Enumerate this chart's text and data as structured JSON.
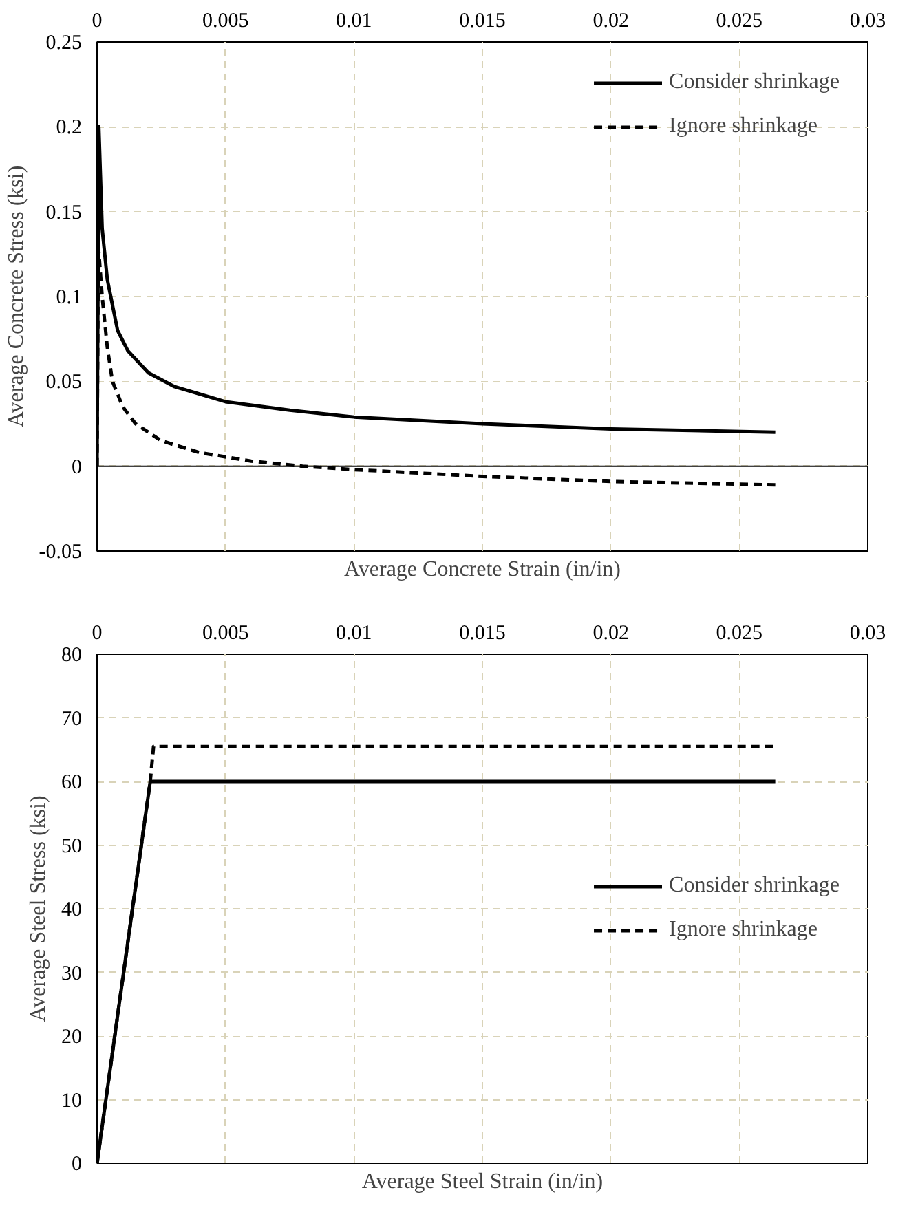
{
  "chart_data": [
    {
      "type": "line",
      "xlabel": "Average Concrete Strain (in/in)",
      "ylabel": "Average Concrete Stress (ksi)",
      "xlim": [
        0,
        0.03
      ],
      "xticks": [
        0,
        0.005,
        0.01,
        0.015,
        0.02,
        0.025,
        0.03
      ],
      "ylim": [
        -0.05,
        0.25
      ],
      "yticks": [
        -0.05,
        0,
        0.05,
        0.1,
        0.15,
        0.2,
        0.25
      ],
      "grid": true,
      "legend": "top right",
      "marker": "none",
      "ref_lines": [
        {
          "axis": "y",
          "value": 0,
          "color": "#000000",
          "line_style": "solid"
        }
      ],
      "series": [
        {
          "name": "Consider shrinkage",
          "color": "#000000",
          "line_style": "solid",
          "x": [
            0,
            7e-05,
            0.0002,
            0.0004,
            0.0008,
            0.0012,
            0.002,
            0.003,
            0.005,
            0.0075,
            0.01,
            0.015,
            0.02,
            0.0264
          ],
          "values": [
            0,
            0.2,
            0.14,
            0.11,
            0.08,
            0.068,
            0.055,
            0.047,
            0.038,
            0.033,
            0.029,
            0.025,
            0.022,
            0.02
          ]
        },
        {
          "name": "Ignore shrinkage",
          "color": "#000000",
          "line_style": "dashed",
          "x": [
            0,
            5e-05,
            0.0002,
            0.0004,
            0.0006,
            0.001,
            0.0015,
            0.0025,
            0.004,
            0.006,
            0.008,
            0.01,
            0.015,
            0.02,
            0.0264
          ],
          "values": [
            0,
            0.13,
            0.1,
            0.07,
            0.05,
            0.035,
            0.025,
            0.015,
            0.008,
            0.003,
            0.0,
            -0.002,
            -0.006,
            -0.009,
            -0.011
          ]
        }
      ]
    },
    {
      "type": "line",
      "xlabel": "Average Steel Strain (in/in)",
      "ylabel": "Average Steel Stress (ksi)",
      "xlim": [
        0,
        0.03
      ],
      "xticks": [
        0,
        0.005,
        0.01,
        0.015,
        0.02,
        0.025,
        0.03
      ],
      "ylim": [
        0,
        80
      ],
      "yticks": [
        0,
        10,
        20,
        30,
        40,
        50,
        60,
        70,
        80
      ],
      "grid": true,
      "legend": "right",
      "marker": "none",
      "series": [
        {
          "name": "Consider shrinkage",
          "color": "#000000",
          "line_style": "solid",
          "x": [
            0,
            0.00207,
            0.0264
          ],
          "values": [
            0,
            60,
            60
          ]
        },
        {
          "name": "Ignore shrinkage",
          "color": "#000000",
          "line_style": "dashed",
          "x": [
            0,
            0.00207,
            0.0022,
            0.0264
          ],
          "values": [
            0,
            60,
            65.5,
            65.5
          ]
        }
      ]
    }
  ]
}
